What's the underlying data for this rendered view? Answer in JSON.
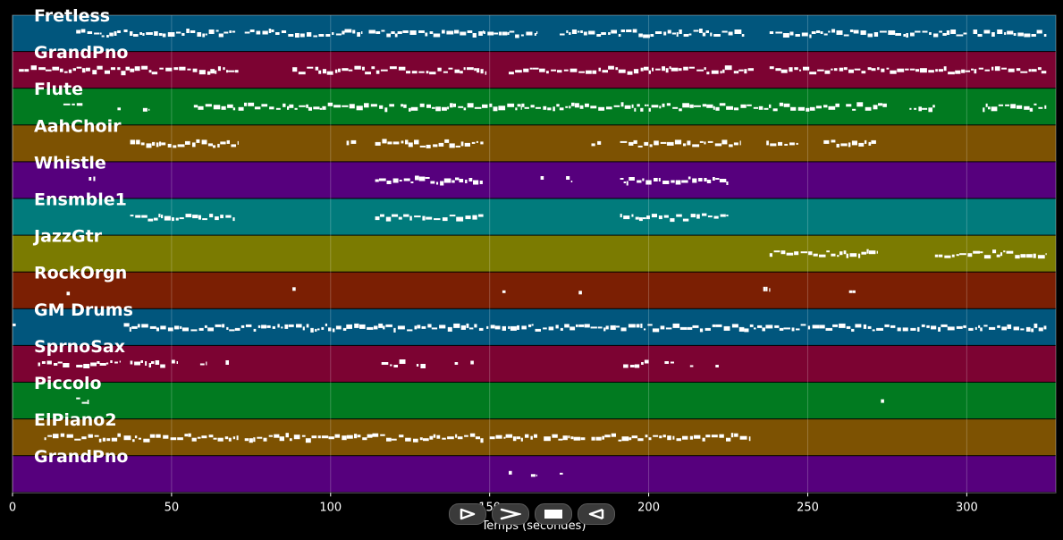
{
  "app": {
    "x_axis_title": "Temps (secondes)"
  },
  "controls": [
    {
      "name": "play-button",
      "icon": "play-icon"
    },
    {
      "name": "fast-forward-button",
      "icon": "fast-forward-icon"
    },
    {
      "name": "stop-button",
      "icon": "stop-icon"
    },
    {
      "name": "rewind-button",
      "icon": "rewind-icon"
    }
  ],
  "chart_data": {
    "type": "piano-roll",
    "xlabel": "Temps (secondes)",
    "xlim": [
      0,
      328
    ],
    "x_ticks": [
      0,
      50,
      100,
      150,
      200,
      250,
      300
    ],
    "grid": true,
    "tracks": [
      {
        "name": "Fretless",
        "color": "#01567d",
        "segments": [
          [
            20,
            28
          ],
          [
            28,
            34
          ],
          [
            35,
            58
          ],
          [
            58,
            70
          ],
          [
            73,
            110
          ],
          [
            112,
            148
          ],
          [
            148,
            165
          ],
          [
            172,
            185
          ],
          [
            185,
            230
          ],
          [
            238,
            300
          ],
          [
            302,
            325
          ]
        ]
      },
      {
        "name": "GrandPno",
        "color": "#7c0332",
        "segments": [
          [
            2,
            71
          ],
          [
            88,
            149
          ],
          [
            156,
            200
          ],
          [
            200,
            233
          ],
          [
            238,
            270
          ],
          [
            270,
            325
          ]
        ]
      },
      {
        "name": "Flute",
        "color": "#017a20",
        "segments": [
          [
            16,
            22
          ],
          [
            33,
            34
          ],
          [
            41,
            43
          ],
          [
            57,
            70
          ],
          [
            71,
            93
          ],
          [
            93,
            120
          ],
          [
            122,
            133
          ],
          [
            133,
            160
          ],
          [
            160,
            200
          ],
          [
            200,
            260
          ],
          [
            262,
            275
          ],
          [
            282,
            290
          ],
          [
            305,
            325
          ]
        ]
      },
      {
        "name": "AahChoir",
        "color": "#7d5202",
        "segments": [
          [
            37,
            71
          ],
          [
            105,
            108
          ],
          [
            114,
            148
          ],
          [
            182,
            185
          ],
          [
            191,
            229
          ],
          [
            237,
            247
          ],
          [
            255,
            272
          ]
        ]
      },
      {
        "name": "Whistle",
        "color": "#56007d",
        "segments": [
          [
            24,
            26
          ],
          [
            114,
            148
          ],
          [
            166,
            167
          ],
          [
            174,
            176
          ],
          [
            191,
            225
          ]
        ]
      },
      {
        "name": "Ensmble1",
        "color": "#017b7c",
        "segments": [
          [
            37,
            70
          ],
          [
            114,
            148
          ],
          [
            191,
            225
          ]
        ]
      },
      {
        "name": "JazzGtr",
        "color": "#7b7b01",
        "segments": [
          [
            238,
            272
          ],
          [
            290,
            325
          ]
        ]
      },
      {
        "name": "RockOrgn",
        "color": "#7b1f03",
        "segments": [
          [
            17,
            18
          ],
          [
            88,
            89
          ],
          [
            154,
            155
          ],
          [
            178,
            179
          ],
          [
            236,
            238
          ],
          [
            263,
            265
          ]
        ]
      },
      {
        "name": "GM Drums",
        "color": "#01567d",
        "segments": [
          [
            0,
            1
          ],
          [
            35,
            148
          ],
          [
            149,
            230
          ],
          [
            230,
            325
          ]
        ]
      },
      {
        "name": "SprnoSax",
        "color": "#7c0332",
        "segments": [
          [
            8,
            18
          ],
          [
            20,
            34
          ],
          [
            37,
            48
          ],
          [
            50,
            52
          ],
          [
            59,
            61
          ],
          [
            67,
            68
          ],
          [
            116,
            124
          ],
          [
            127,
            130
          ],
          [
            139,
            140
          ],
          [
            144,
            145
          ],
          [
            192,
            200
          ],
          [
            205,
            208
          ],
          [
            213,
            214
          ],
          [
            221,
            222
          ]
        ]
      },
      {
        "name": "Piccolo",
        "color": "#017a20",
        "segments": [
          [
            20,
            24
          ],
          [
            273,
            274
          ]
        ]
      },
      {
        "name": "ElPiano2",
        "color": "#7d5202",
        "segments": [
          [
            10,
            34
          ],
          [
            35,
            71
          ],
          [
            73,
            148
          ],
          [
            150,
            165
          ],
          [
            167,
            180
          ],
          [
            182,
            232
          ]
        ]
      },
      {
        "name": "GrandPno",
        "color": "#56007d",
        "segments": [
          [
            156,
            157
          ],
          [
            163,
            165
          ],
          [
            172,
            173
          ]
        ]
      }
    ]
  }
}
